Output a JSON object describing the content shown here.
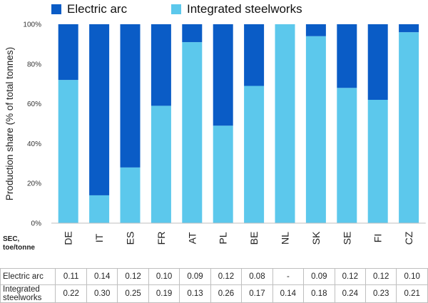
{
  "legend": {
    "electric": {
      "label": "Electric arc",
      "color": "#0a5cc6"
    },
    "integrated": {
      "label": "Integrated steelworks",
      "color": "#5cc8ec"
    }
  },
  "chart_data": {
    "type": "bar",
    "stacked": true,
    "ylabel": "Production share (% of total tonnes)",
    "ylim": [
      0,
      100
    ],
    "yticks": [
      "0%",
      "20%",
      "40%",
      "60%",
      "80%",
      "100%"
    ],
    "categories": [
      "DE",
      "IT",
      "ES",
      "FR",
      "AT",
      "PL",
      "BE",
      "NL",
      "SK",
      "SE",
      "FI",
      "CZ"
    ],
    "series": [
      {
        "name": "Integrated steelworks",
        "values": [
          72,
          14,
          28,
          59,
          91,
          49,
          69,
          100,
          94,
          68,
          62,
          96
        ]
      },
      {
        "name": "Electric arc",
        "values": [
          28,
          86,
          72,
          41,
          9,
          51,
          31,
          0,
          6,
          32,
          38,
          4
        ]
      }
    ]
  },
  "table": {
    "header_line1": "SEC,",
    "header_line2": "toe/tonne",
    "rows": [
      {
        "label": "Electric arc",
        "values": [
          "0.11",
          "0.14",
          "0.12",
          "0.10",
          "0.09",
          "0.12",
          "0.08",
          "-",
          "0.09",
          "0.12",
          "0.12",
          "0.10"
        ]
      },
      {
        "label_line1": "Integrated",
        "label_line2": "steelworks",
        "values": [
          "0.22",
          "0.30",
          "0.25",
          "0.19",
          "0.13",
          "0.26",
          "0.17",
          "0.14",
          "0.18",
          "0.24",
          "0.23",
          "0.21"
        ]
      }
    ]
  }
}
